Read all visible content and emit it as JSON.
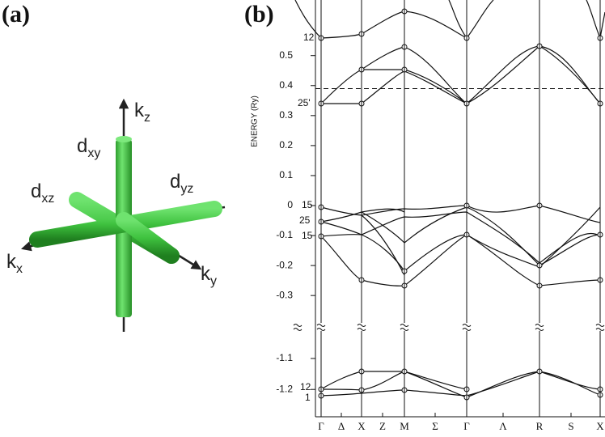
{
  "panel_a": {
    "label": "(a)",
    "orbitals": [
      {
        "base": "d",
        "sub": "xy"
      },
      {
        "base": "d",
        "sub": "xz"
      },
      {
        "base": "d",
        "sub": "yz"
      }
    ],
    "axes": [
      {
        "base": "k",
        "sub": "z"
      },
      {
        "base": "k",
        "sub": "x"
      },
      {
        "base": "k",
        "sub": "y"
      }
    ]
  },
  "panel_b": {
    "label": "(b)",
    "ylabel": "ENERGY (Ry)",
    "upper_axis": {
      "ylim": [
        -0.34,
        0.68
      ],
      "yticks": [
        0.5,
        0.4,
        0.3,
        0.2,
        0.1,
        0,
        -0.1,
        -0.2,
        -0.3
      ]
    },
    "lower_axis": {
      "ylim": [
        -1.27,
        -1.04
      ],
      "yticks": [
        -1.1,
        -1.2
      ]
    },
    "dashed_level": 0.39,
    "symmetry_points": [
      "Γ",
      "Δ",
      "X",
      "Z",
      "M",
      "Σ",
      "Γ",
      "Λ",
      "R",
      "S",
      "X"
    ],
    "level_labels": [
      "12",
      "25'",
      "15",
      "25",
      "15",
      "12",
      "1"
    ]
  }
}
